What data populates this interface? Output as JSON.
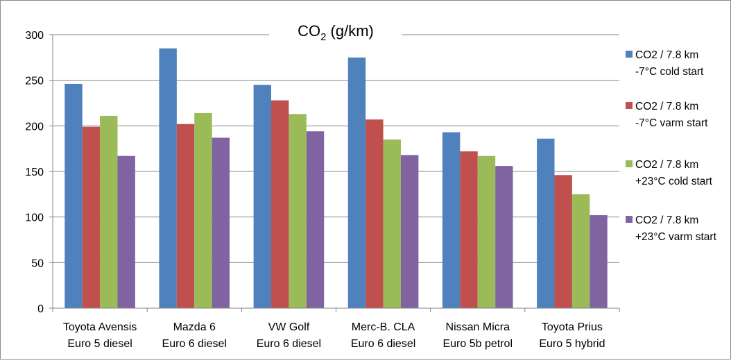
{
  "chart_data": {
    "type": "bar",
    "title": "CO",
    "title_sub": "2",
    "title_suffix": " (g/km)",
    "categories": [
      [
        "Toyota Avensis",
        "Euro 5 diesel"
      ],
      [
        "Mazda 6",
        "Euro 6 diesel"
      ],
      [
        "VW Golf",
        "Euro 6 diesel"
      ],
      [
        "Merc-B. CLA",
        "Euro 6 diesel"
      ],
      [
        "Nissan Micra",
        "Euro 5b petrol"
      ],
      [
        "Toyota Prius",
        "Euro 5 hybrid"
      ]
    ],
    "series": [
      {
        "name": [
          "CO2 / 7.8 km",
          "-7°C cold start"
        ],
        "color": "#4F81BD",
        "values": [
          246,
          285,
          245,
          275,
          193,
          186
        ]
      },
      {
        "name": [
          "CO2 /  7.8 km",
          "-7°C varm start"
        ],
        "color": "#C0504D",
        "values": [
          199,
          202,
          228,
          207,
          172,
          146
        ]
      },
      {
        "name": [
          "CO2 / 7.8 km",
          "+23°C cold start"
        ],
        "color": "#9BBB59",
        "values": [
          211,
          214,
          213,
          185,
          167,
          125
        ]
      },
      {
        "name": [
          "CO2 / 7.8 km",
          "+23°C varm start"
        ],
        "color": "#8064A2",
        "values": [
          167,
          187,
          194,
          168,
          156,
          102
        ]
      }
    ],
    "yticks": [
      0,
      50,
      100,
      150,
      200,
      250,
      300
    ],
    "ylim": [
      0,
      300
    ],
    "grid": true,
    "legend_position": "right"
  }
}
